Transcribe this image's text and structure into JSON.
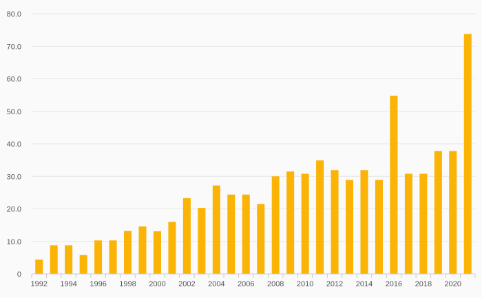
{
  "chart_data": {
    "type": "bar",
    "title": "",
    "xlabel": "",
    "ylabel": "",
    "categories": [
      1992,
      1993,
      1994,
      1995,
      1996,
      1997,
      1998,
      1999,
      2000,
      2001,
      2002,
      2003,
      2004,
      2005,
      2006,
      2007,
      2008,
      2009,
      2010,
      2011,
      2012,
      2013,
      2014,
      2015,
      2016,
      2017,
      2018,
      2019,
      2020,
      2021
    ],
    "x_tick_labels": [
      "1992",
      "1994",
      "1996",
      "1998",
      "2000",
      "2002",
      "2004",
      "2006",
      "2008",
      "2010",
      "2012",
      "2014",
      "2016",
      "2018",
      "2020"
    ],
    "values": [
      4.4,
      8.8,
      8.8,
      5.8,
      10.3,
      10.3,
      13.2,
      14.6,
      13.1,
      16.0,
      23.3,
      20.3,
      27.2,
      24.4,
      24.4,
      21.5,
      30.0,
      31.5,
      30.8,
      34.9,
      31.9,
      28.9,
      31.9,
      28.9,
      54.8,
      30.8,
      30.8,
      37.8,
      37.8,
      73.8
    ],
    "ylim": [
      0,
      80
    ],
    "y_tick_labels": [
      "0",
      "10.0",
      "20.0",
      "30.0",
      "40.0",
      "50.0",
      "60.0",
      "70.0",
      "80.0"
    ],
    "y_tick_values": [
      0,
      10,
      20,
      30,
      40,
      50,
      60,
      70,
      80
    ],
    "bar_color": "#fbb306",
    "grid": true,
    "legend": "none"
  }
}
